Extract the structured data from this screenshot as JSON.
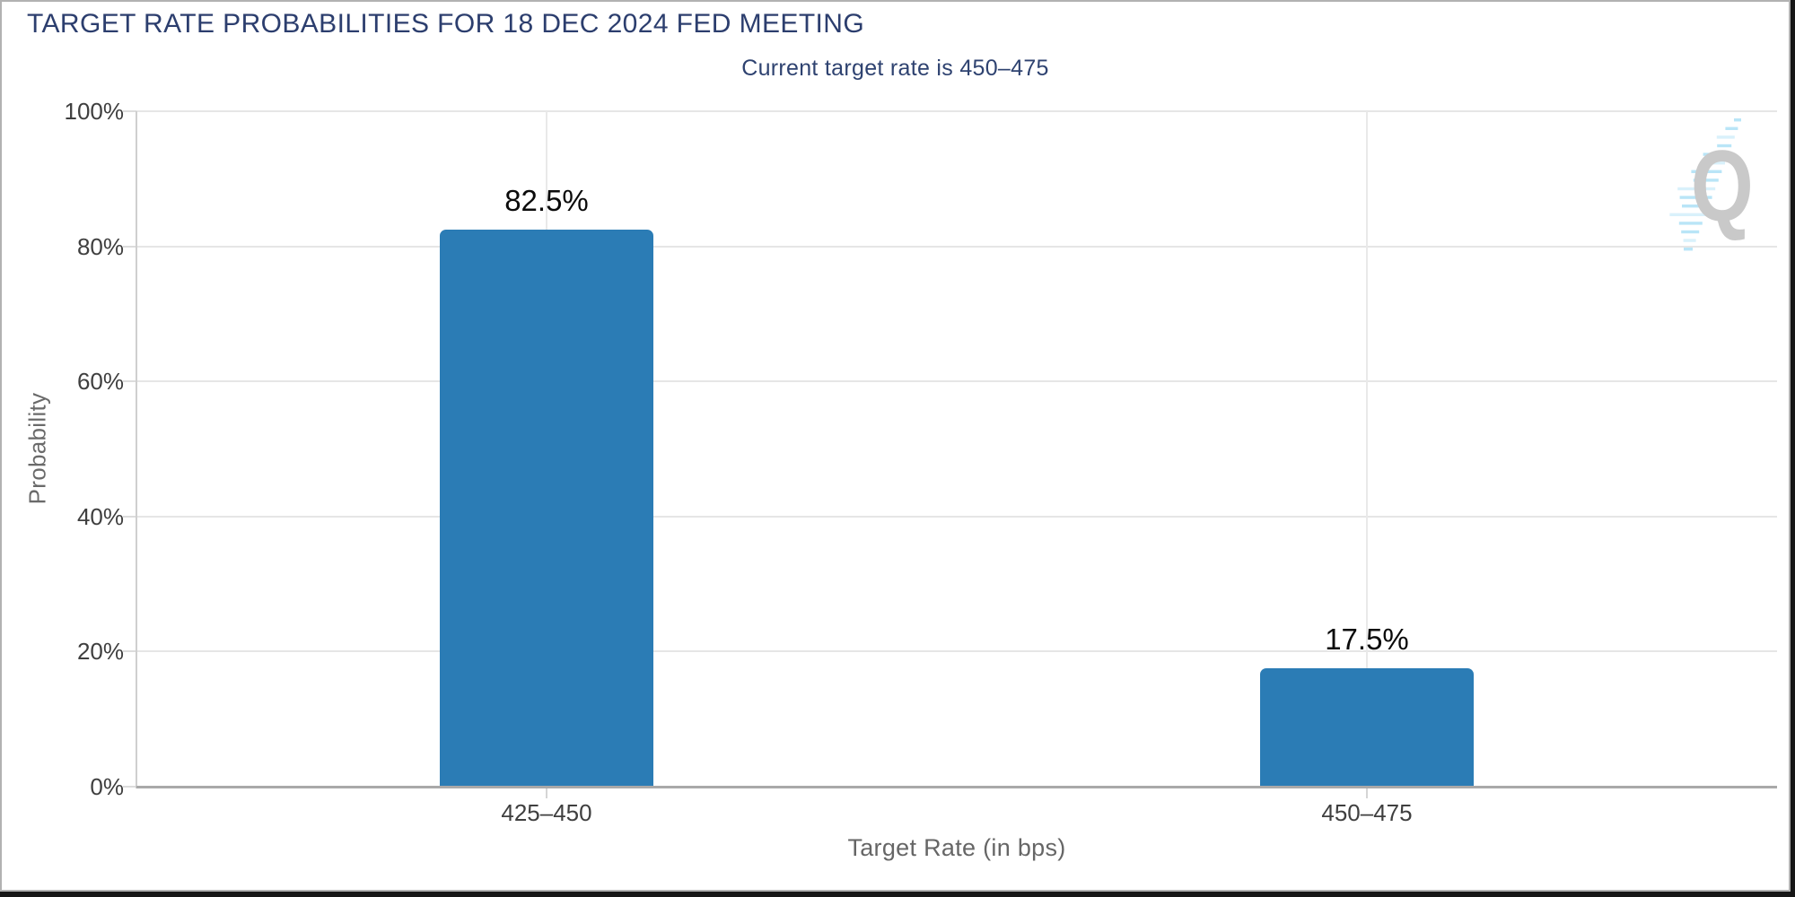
{
  "page": {
    "title": "TARGET RATE PROBABILITIES FOR 18 DEC 2024 FED MEETING",
    "subtitle": "Current target rate is 450–475"
  },
  "chart_data": {
    "type": "bar",
    "title": "TARGET RATE PROBABILITIES FOR 18 DEC 2024 FED MEETING",
    "subtitle": "Current target rate is 450–475",
    "categories": [
      "425–450",
      "450–475"
    ],
    "values": [
      82.5,
      17.5
    ],
    "value_labels": [
      "82.5%",
      "17.5%"
    ],
    "xlabel": "Target Rate (in bps)",
    "ylabel": "Probability",
    "ylim": [
      0,
      100
    ],
    "y_ticks": [
      "0%",
      "20%",
      "40%",
      "60%",
      "80%",
      "100%"
    ],
    "y_tick_values": [
      0,
      20,
      40,
      60,
      80,
      100
    ],
    "grid": true,
    "legend": false,
    "bar_color": "#2b7cb5"
  },
  "watermark": {
    "letter": "Q",
    "letter_color": "#c9c9c9",
    "stripe_color": "#b9e5f7",
    "stripe_color_light": "#d9f1fb"
  },
  "colors": {
    "title_navy": "#2c3e6e",
    "bar_blue": "#2b7cb5",
    "gridline": "#e6e6e6",
    "axis_line": "#a9a9a9",
    "tick_label": "#3f3f3f",
    "axis_title": "#6a6a6a",
    "frame_border": "#b2b2b2",
    "edge_dark": "#161616",
    "value_label": "#0b0b0b"
  }
}
